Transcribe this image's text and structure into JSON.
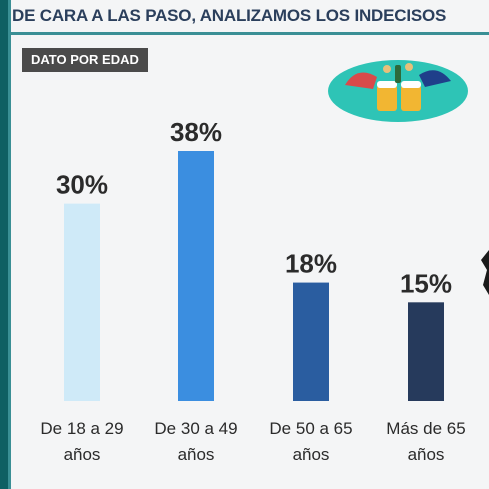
{
  "header": {
    "title": "DE CARA A LAS PASO, ANALIZAMOS LOS INDECISOS",
    "subtitle": "DATO POR EDAD"
  },
  "logo": {
    "icon": "beer-toast-icon"
  },
  "colors": {
    "bars": [
      "#cfeaf8",
      "#3b8ee0",
      "#2a5da0",
      "#263a5c"
    ],
    "text": "#2b2b2b"
  },
  "chart_data": {
    "type": "bar",
    "categories": [
      [
        "De 18 a 29",
        "años"
      ],
      [
        "De 30 a 49",
        "años"
      ],
      [
        "De 50 a 65",
        "años"
      ],
      [
        "Más de 65",
        "años"
      ]
    ],
    "values": [
      30,
      38,
      18,
      15
    ],
    "data_labels": [
      "30%",
      "38%",
      "18%",
      "15%"
    ],
    "ylim": [
      0,
      38
    ],
    "grid": false,
    "legend": "none"
  }
}
